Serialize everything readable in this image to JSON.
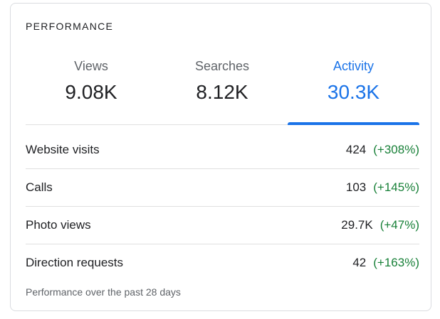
{
  "card": {
    "title": "PERFORMANCE",
    "footnote": "Performance over the past 28 days"
  },
  "tabs": [
    {
      "label": "Views",
      "value": "9.08K",
      "active": false
    },
    {
      "label": "Searches",
      "value": "8.12K",
      "active": false
    },
    {
      "label": "Activity",
      "value": "30.3K",
      "active": true
    }
  ],
  "rows": [
    {
      "label": "Website visits",
      "value": "424",
      "delta": "(+308%)"
    },
    {
      "label": "Calls",
      "value": "103",
      "delta": "(+145%)"
    },
    {
      "label": "Photo views",
      "value": "29.7K",
      "delta": "(+47%)"
    },
    {
      "label": "Direction requests",
      "value": "42",
      "delta": "(+163%)"
    }
  ],
  "colors": {
    "accent": "#1a73e8",
    "positive_delta": "#188038",
    "border": "#dadce0",
    "divider": "#e0e0e0"
  }
}
